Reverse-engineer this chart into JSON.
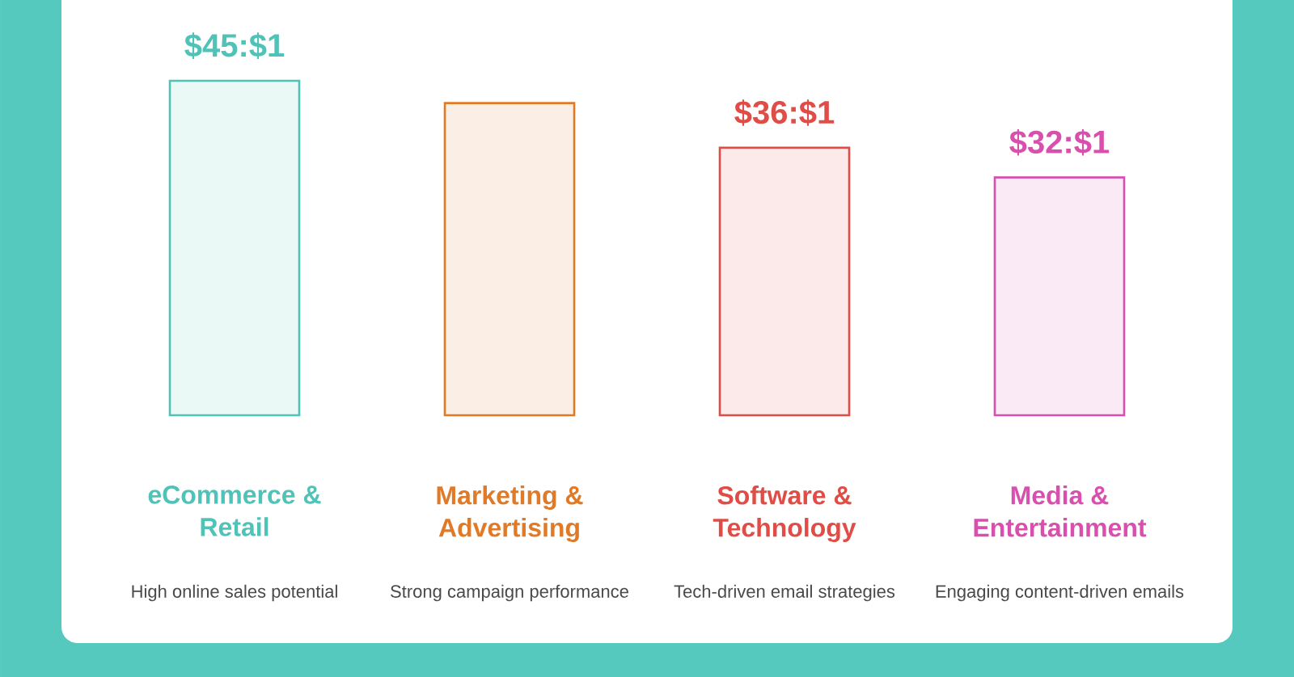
{
  "chart_data": {
    "type": "bar",
    "categories": [
      "eCommerce & Retail",
      "Marketing & Advertising",
      "Software & Technology",
      "Media & Entertainment"
    ],
    "values": [
      45,
      42,
      36,
      32
    ],
    "colors": [
      "#4fc3b7",
      "#e07a26",
      "#e04d47",
      "#d84fae"
    ],
    "value_labels": [
      "$45:$1",
      null,
      "$36:$1",
      "$32:$1"
    ],
    "annotations": [
      "High online sales potential",
      "Strong campaign performance",
      "Tech-driven email strategies",
      "Engaging content-driven emails"
    ]
  }
}
